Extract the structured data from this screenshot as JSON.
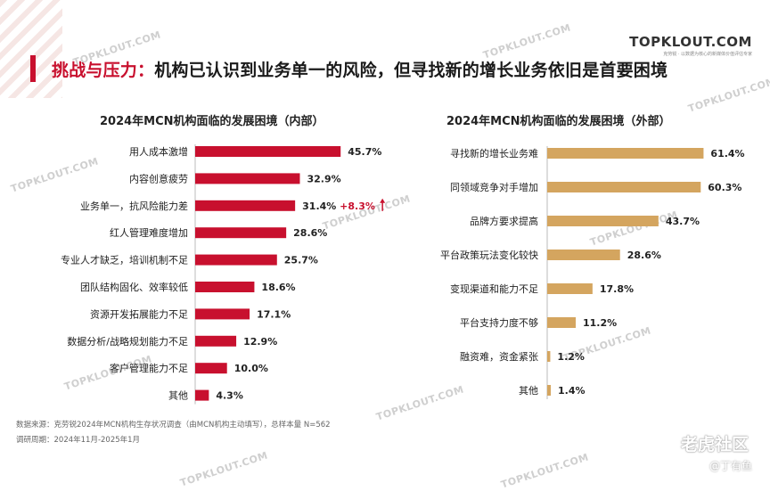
{
  "header": {
    "title_prefix": "挑战与压力：",
    "title_main": "机构已认识到业务单一的风险，但寻找新的增长业务依旧是首要困境",
    "logo_main": "TOPKLOUT.COM",
    "logo_sub": "克劳锐 · 以数据为核心的新媒体价值评估专家"
  },
  "watermark_text": "TOPKLOUT.COM",
  "colors": {
    "red": "#c8102e",
    "gold": "#d4a55f",
    "label": "#222222"
  },
  "chart_data": [
    {
      "type": "bar",
      "orientation": "horizontal",
      "title": "2024年MCN机构面临的发展困境（内部）",
      "categories": [
        "用人成本激增",
        "内容创意疲劳",
        "业务单一，抗风险能力差",
        "红人管理难度增加",
        "专业人才缺乏，培训机制不足",
        "团队结构固化、效率较低",
        "资源开发拓展能力不足",
        "数据分析/战略规划能力不足",
        "客户管理能力不足",
        "其他"
      ],
      "values": [
        45.7,
        32.9,
        31.4,
        28.6,
        25.7,
        18.6,
        17.1,
        12.9,
        10.0,
        4.3
      ],
      "labels": [
        "45.7%",
        "32.9%",
        "31.4%",
        "28.6%",
        "25.7%",
        "18.6%",
        "17.1%",
        "12.9%",
        "10.0%",
        "4.3%"
      ],
      "annotation": {
        "category_index": 2,
        "text": "+8.3%"
      },
      "color": "#c8102e",
      "xlim": [
        0,
        70
      ]
    },
    {
      "type": "bar",
      "orientation": "horizontal",
      "title": "2024年MCN机构面临的发展困境（外部）",
      "categories": [
        "寻找新的增长业务难",
        "同领域竞争对手增加",
        "品牌方要求提高",
        "平台政策玩法变化较快",
        "变现渠道和能力不足",
        "平台支持力度不够",
        "融资难，资金紧张",
        "其他"
      ],
      "values": [
        61.4,
        60.3,
        43.7,
        28.6,
        17.8,
        11.2,
        1.2,
        1.4
      ],
      "labels": [
        "61.4%",
        "60.3%",
        "43.7%",
        "28.6%",
        "17.8%",
        "11.2%",
        "1.2%",
        "1.4%"
      ],
      "color": "#d4a55f",
      "xlim": [
        0,
        70
      ]
    }
  ],
  "footer": {
    "source": "数据来源：克劳锐2024年MCN机构生存状况调查（由MCN机构主动填写），总样本量 N=562",
    "period": "调研周期：2024年11月-2025年1月"
  },
  "forum": {
    "logo": "老虎社区",
    "author": "@丁有鱼"
  }
}
